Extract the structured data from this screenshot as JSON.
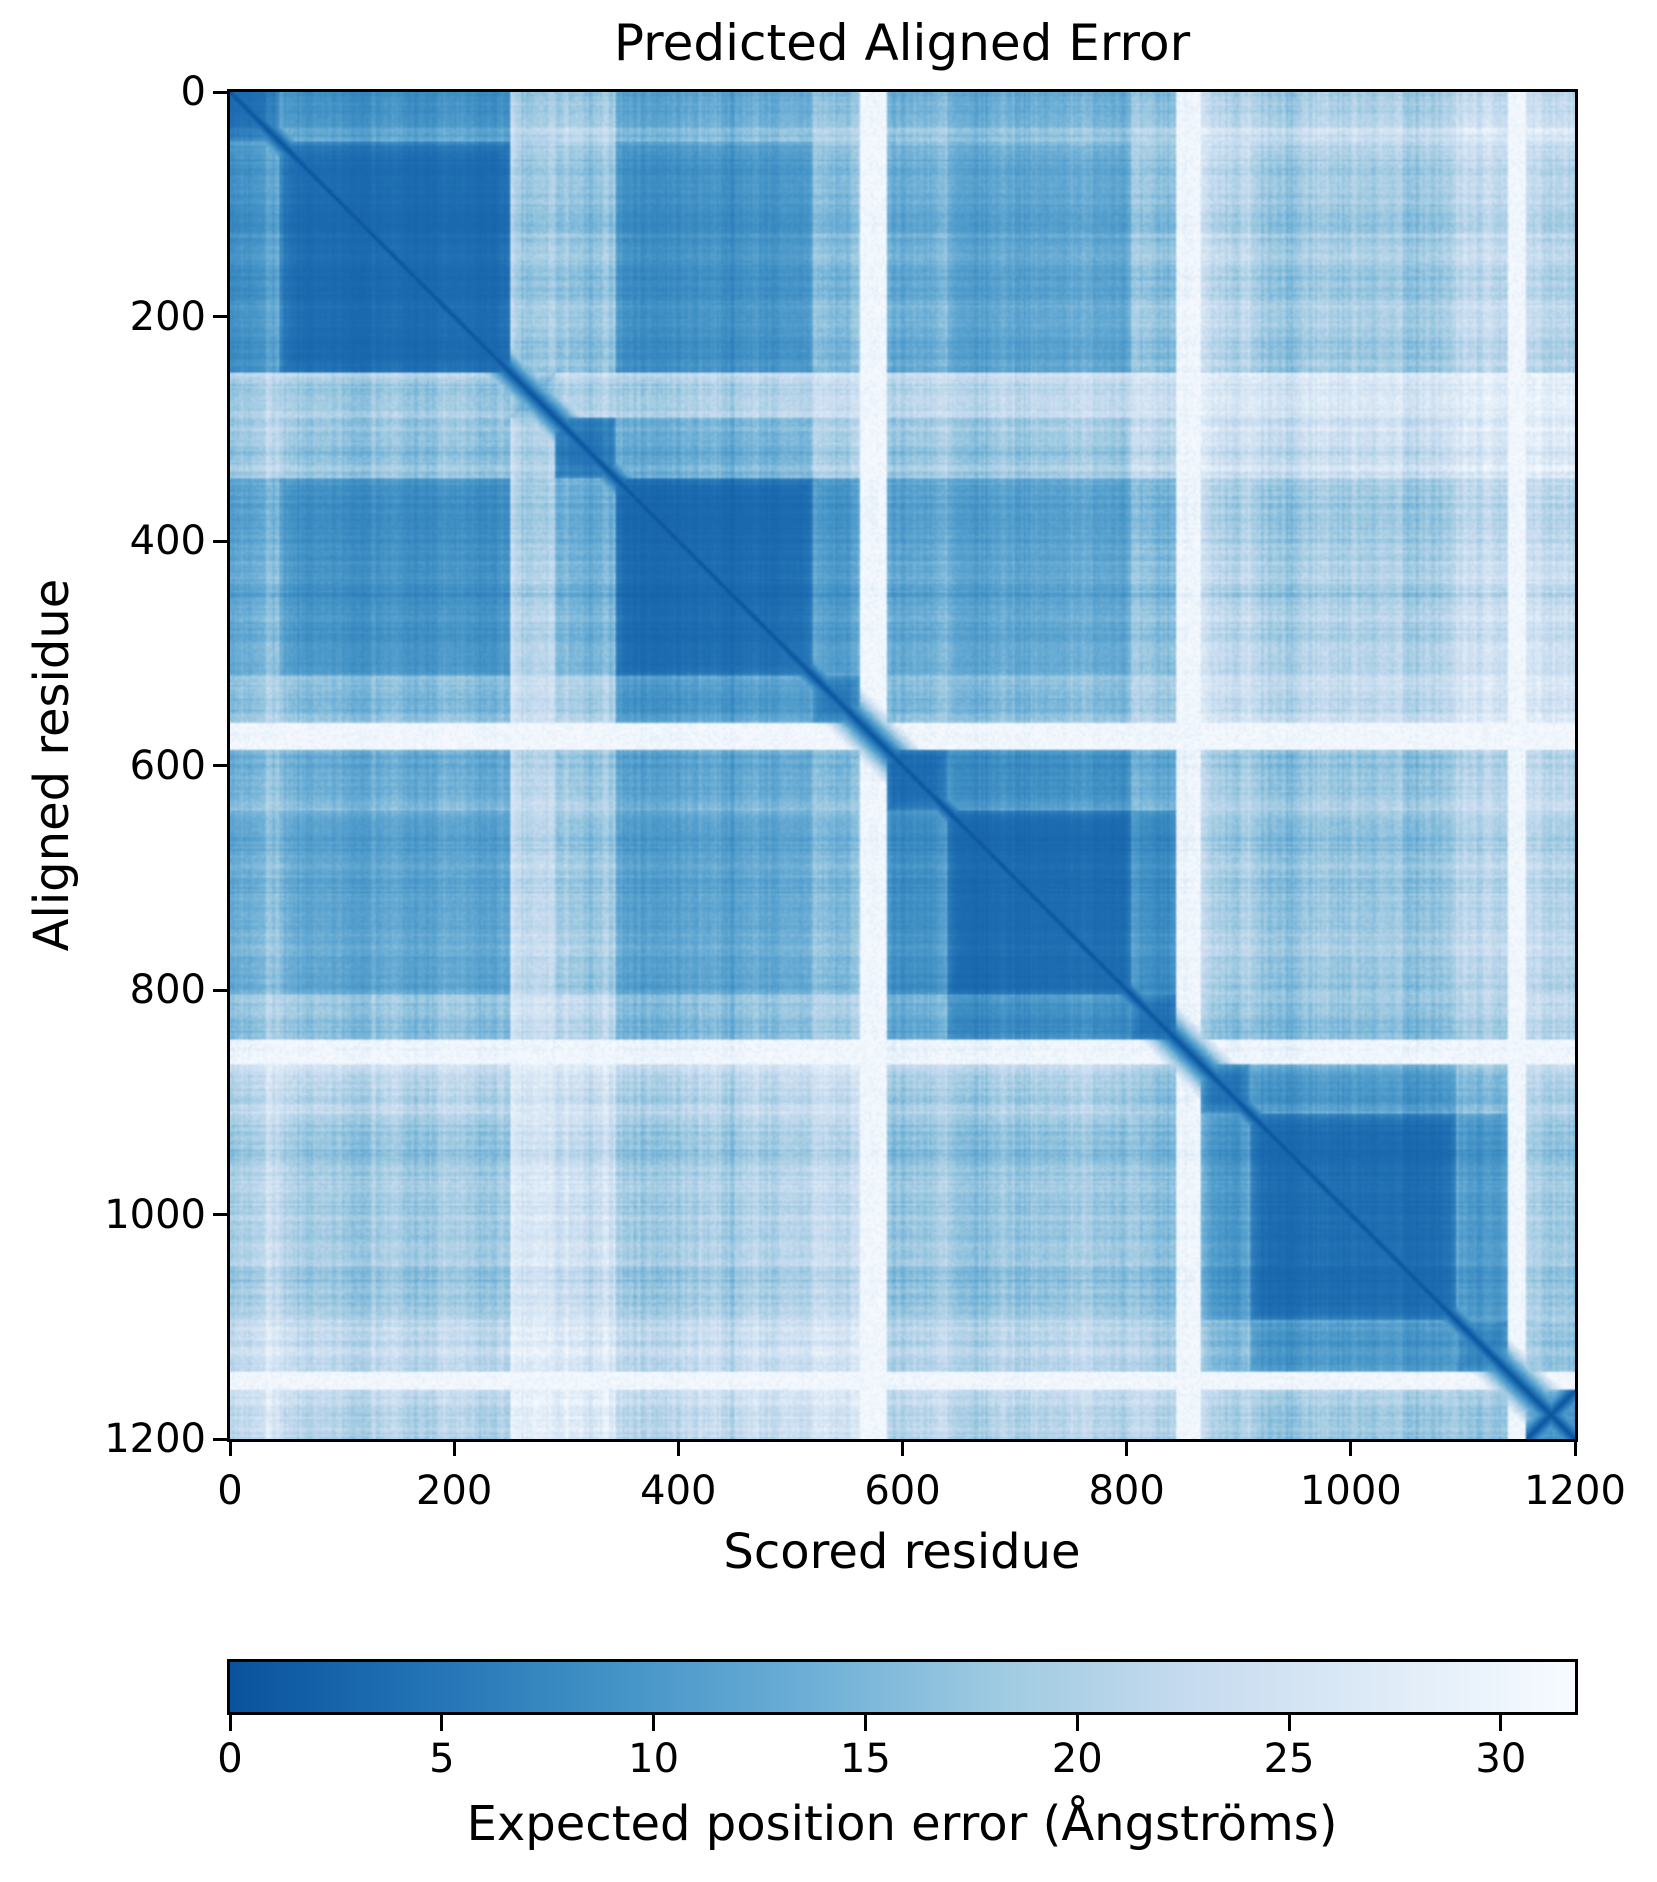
{
  "chart_data": {
    "type": "heatmap",
    "title": "Predicted Aligned Error",
    "xlabel": "Scored residue",
    "ylabel": "Aligned residue",
    "n_residues": 1200,
    "x_range": [
      0,
      1200
    ],
    "y_range": [
      0,
      1200
    ],
    "x_ticks": [
      0,
      200,
      400,
      600,
      800,
      1000,
      1200
    ],
    "y_ticks": [
      0,
      200,
      400,
      600,
      800,
      1000,
      1200
    ],
    "grid": false,
    "colorbar": {
      "label": "Expected position error (Ångströms)",
      "ticks": [
        0,
        5,
        10,
        15,
        20,
        25,
        30
      ],
      "vmin": 0,
      "vmax": 31.75,
      "orientation": "horizontal",
      "colormap": "Blues_r_truncated",
      "colormap_stops": [
        "#f7fbff",
        "#deebf7",
        "#c6dbef",
        "#9ecae1",
        "#6baed6",
        "#4292c6",
        "#2171b5",
        "#08519c",
        "#08306b"
      ],
      "colormap_max_position": 0.87
    },
    "texture_seed": 7,
    "segments": [
      {
        "id": "seg01",
        "start": 0,
        "end": 45,
        "intra_pae": 4.0,
        "flexibility": 0.18
      },
      {
        "id": "seg02",
        "start": 45,
        "end": 250,
        "intra_pae": 3.5,
        "flexibility": 0.05
      },
      {
        "id": "seg03",
        "start": 250,
        "end": 290,
        "intra_pae": 6.0,
        "flexibility": 0.5
      },
      {
        "id": "seg04",
        "start": 290,
        "end": 345,
        "intra_pae": 4.0,
        "flexibility": 0.1
      },
      {
        "id": "seg05",
        "start": 345,
        "end": 520,
        "intra_pae": 3.5,
        "flexibility": 0.05
      },
      {
        "id": "seg06",
        "start": 520,
        "end": 562,
        "intra_pae": 4.0,
        "flexibility": 0.1
      },
      {
        "id": "seg07",
        "start": 562,
        "end": 586,
        "intra_pae": 8.0,
        "flexibility": 0.85
      },
      {
        "id": "seg08",
        "start": 586,
        "end": 640,
        "intra_pae": 4.0,
        "flexibility": 0.12
      },
      {
        "id": "seg09",
        "start": 640,
        "end": 805,
        "intra_pae": 3.5,
        "flexibility": 0.05
      },
      {
        "id": "seg10",
        "start": 805,
        "end": 845,
        "intra_pae": 4.0,
        "flexibility": 0.12
      },
      {
        "id": "seg11",
        "start": 845,
        "end": 866,
        "intra_pae": 9.0,
        "flexibility": 0.85
      },
      {
        "id": "seg12",
        "start": 866,
        "end": 910,
        "intra_pae": 4.0,
        "flexibility": 0.15
      },
      {
        "id": "seg13",
        "start": 910,
        "end": 1095,
        "intra_pae": 3.5,
        "flexibility": 0.05
      },
      {
        "id": "seg14",
        "start": 1095,
        "end": 1140,
        "intra_pae": 4.5,
        "flexibility": 0.12
      },
      {
        "id": "seg15",
        "start": 1140,
        "end": 1157,
        "intra_pae": 9.0,
        "flexibility": 0.85
      },
      {
        "id": "seg16",
        "start": 1157,
        "end": 1200,
        "intra_pae": 8.0,
        "flexibility": 0.15,
        "pattern": "cross"
      }
    ],
    "inter_segment_pae": [
      [
        4.0,
        9,
        14,
        18,
        13,
        16,
        26,
        16,
        14,
        18,
        27,
        22,
        20,
        22,
        28,
        22
      ],
      [
        9,
        3.5,
        12,
        16,
        9,
        14,
        25,
        14,
        12,
        17,
        26,
        21,
        18,
        20,
        28,
        19
      ],
      [
        14,
        12,
        6,
        14,
        15,
        18,
        26,
        19,
        18,
        22,
        28,
        24,
        23,
        24,
        29,
        25
      ],
      [
        18,
        16,
        14,
        4,
        13,
        17,
        26,
        18,
        17,
        21,
        27,
        23,
        22,
        23,
        29,
        24
      ],
      [
        13,
        9,
        15,
        13,
        3.5,
        9,
        24,
        13,
        12,
        16,
        26,
        21,
        19,
        21,
        28,
        21
      ],
      [
        16,
        14,
        18,
        17,
        9,
        4,
        20,
        15,
        14,
        18,
        26,
        22,
        20,
        22,
        28,
        22
      ],
      [
        26,
        25,
        26,
        26,
        24,
        20,
        8,
        22,
        23,
        25,
        29,
        27,
        26,
        27,
        30,
        27
      ],
      [
        16,
        14,
        19,
        18,
        13,
        15,
        22,
        4,
        9,
        14,
        25,
        20,
        18,
        20,
        28,
        21
      ],
      [
        14,
        12,
        18,
        17,
        12,
        14,
        23,
        9,
        3.5,
        8,
        24,
        19,
        17,
        19,
        27,
        19
      ],
      [
        18,
        17,
        22,
        21,
        16,
        18,
        25,
        14,
        8,
        4,
        18,
        17,
        16,
        18,
        27,
        20
      ],
      [
        27,
        26,
        28,
        27,
        26,
        26,
        29,
        25,
        24,
        18,
        9,
        20,
        22,
        23,
        29,
        25
      ],
      [
        22,
        21,
        24,
        23,
        21,
        22,
        27,
        20,
        19,
        17,
        20,
        4,
        9,
        13,
        24,
        18
      ],
      [
        20,
        18,
        23,
        22,
        19,
        20,
        26,
        18,
        17,
        16,
        22,
        9,
        3.5,
        8,
        23,
        16
      ],
      [
        22,
        20,
        24,
        23,
        21,
        22,
        27,
        20,
        19,
        18,
        23,
        13,
        8,
        4.5,
        20,
        14
      ],
      [
        28,
        28,
        29,
        29,
        28,
        28,
        30,
        28,
        27,
        27,
        29,
        24,
        23,
        20,
        9,
        22
      ],
      [
        22,
        19,
        25,
        24,
        21,
        22,
        27,
        21,
        19,
        20,
        25,
        18,
        16,
        14,
        22,
        8
      ]
    ]
  }
}
